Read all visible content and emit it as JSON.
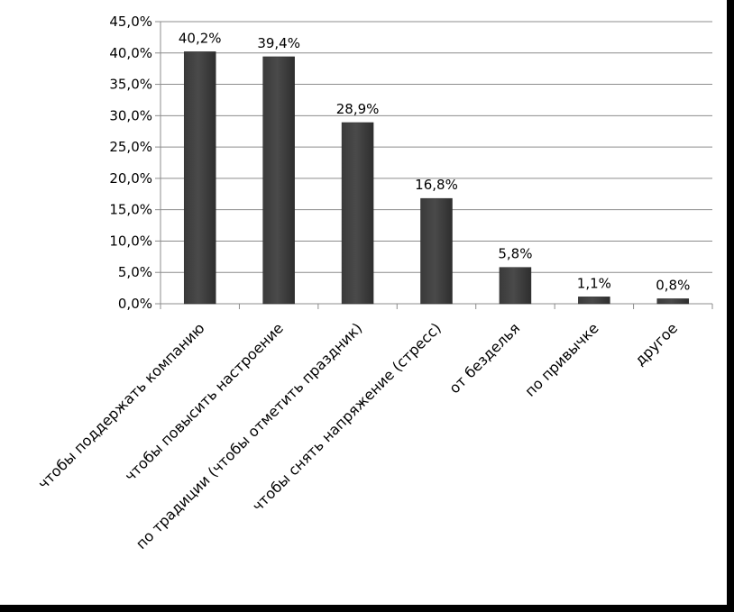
{
  "chart_data": {
    "type": "bar",
    "categories": [
      "чтобы поддержать компанию",
      "чтобы повысить настроение",
      "по традиции (чтобы отметить праздник)",
      "чтобы снять напряжение (стресс)",
      "от безделья",
      "по привычке",
      "другое"
    ],
    "values": [
      40.2,
      39.4,
      28.9,
      16.8,
      5.8,
      1.1,
      0.8
    ],
    "data_labels": [
      "40,2%",
      "39,4%",
      "28,9%",
      "16,8%",
      "5,8%",
      "1,1%",
      "0,8%"
    ],
    "y_ticks": [
      0,
      5,
      10,
      15,
      20,
      25,
      30,
      35,
      40,
      45
    ],
    "y_tick_labels": [
      "0,0%",
      "5,0%",
      "10,0%",
      "15,0%",
      "20,0%",
      "25,0%",
      "30,0%",
      "35,0%",
      "40,0%",
      "45,0%"
    ],
    "ylim": [
      0,
      45
    ],
    "grid": true,
    "legend": "none",
    "bar_color": "#4a4a4a"
  }
}
